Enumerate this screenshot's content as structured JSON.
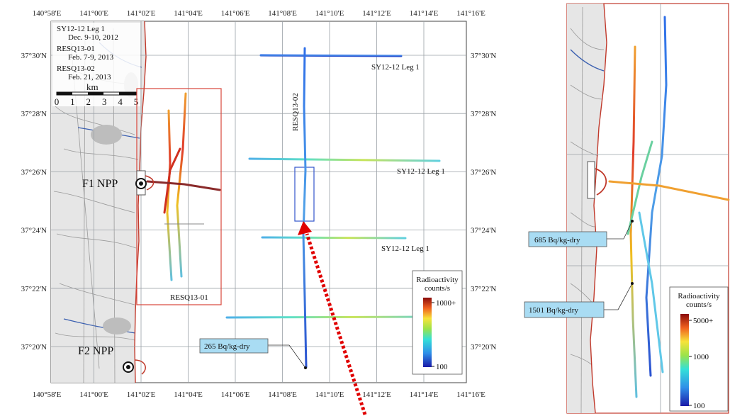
{
  "main_map": {
    "lon_labels": [
      "140°58'E",
      "141°00'E",
      "141°02'E",
      "141°04'E",
      "141°06'E",
      "141°08'E",
      "141°10'E",
      "141°12'E",
      "141°14'E",
      "141°16'E"
    ],
    "lat_labels": [
      "37°30'N",
      "37°28'N",
      "37°26'N",
      "37°24'N",
      "37°22'N",
      "37°20'N"
    ],
    "survey_legend": [
      "SY12-12 Leg 1",
      "Dec. 9-10, 2012",
      "RESQ13-01",
      "Feb. 7-9, 2013",
      "RESQ13-02",
      "Feb. 21, 2013"
    ],
    "scale_bar": {
      "unit": "km",
      "ticks": [
        "0",
        "1",
        "2",
        "3",
        "4",
        "5"
      ]
    },
    "plants": {
      "f1": "F1 NPP",
      "f2": "F2 NPP"
    },
    "track_labels": {
      "leg1_top": "SY12-12 Leg 1",
      "leg1_mid": "SY12-12 Leg 1",
      "leg1_low": "SY12-12 Leg 1",
      "resq02": "RESQ13-02",
      "resq01": "RESQ13-01"
    },
    "callout": "265 Bq/kg-dry",
    "color_legend": {
      "title1": "Radioactivity",
      "title2": "counts/s",
      "max": "1000+",
      "min": "100"
    }
  },
  "inset_map": {
    "callouts": [
      "685 Bq/kg-dry",
      "1501 Bq/kg-dry"
    ],
    "color_legend": {
      "title1": "Radioactivity",
      "title2": "counts/s",
      "max": "5000+",
      "mid": "1000",
      "min": "100"
    }
  },
  "colors": {
    "land": "#ececec",
    "sea": "#ffffff",
    "coast_red": "#c0392b",
    "box_red": "#d9453b",
    "box_blue": "#3355cc",
    "callout_fill": "#a9dcf3",
    "arrow": "#e00000"
  }
}
